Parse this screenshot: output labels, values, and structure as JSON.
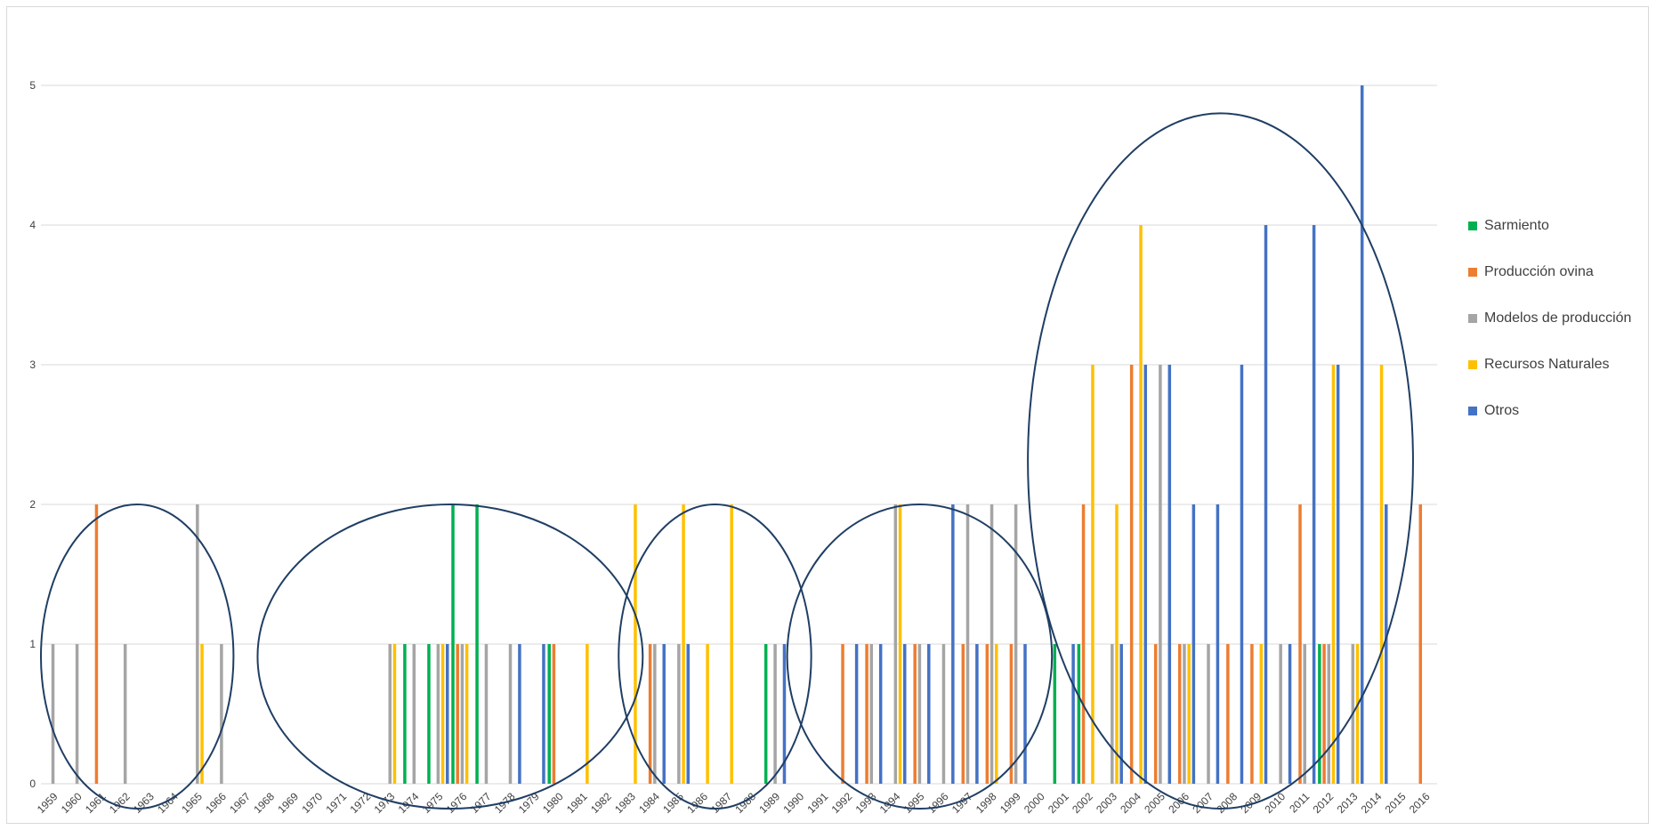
{
  "chart_data": {
    "type": "bar",
    "title": "",
    "xlabel": "",
    "ylabel": "",
    "ylim": [
      0,
      5
    ],
    "yticks": [
      "0",
      "1",
      "2",
      "3",
      "4",
      "5"
    ],
    "grid": true,
    "legend_position": "right",
    "categories": [
      "1959",
      "1960",
      "1961",
      "1962",
      "1963",
      "1964",
      "1965",
      "1966",
      "1967",
      "1968",
      "1969",
      "1970",
      "1971",
      "1972",
      "1973",
      "1974",
      "1975",
      "1976",
      "1977",
      "1978",
      "1979",
      "1980",
      "1981",
      "1982",
      "1983",
      "1984",
      "1985",
      "1986",
      "1987",
      "1988",
      "1989",
      "1990",
      "1991",
      "1992",
      "1993",
      "1994",
      "1995",
      "1996",
      "1997",
      "1998",
      "1999",
      "2000",
      "2001",
      "2002",
      "2003",
      "2004",
      "2005",
      "2006",
      "2007",
      "2008",
      "2009",
      "2010",
      "2011",
      "2012",
      "2013",
      "2014",
      "2015",
      "2016"
    ],
    "series": [
      {
        "name": "Sarmiento",
        "color": "#00b050",
        "values": [
          0,
          0,
          0,
          0,
          0,
          0,
          0,
          0,
          0,
          0,
          0,
          0,
          0,
          0,
          0,
          1,
          1,
          2,
          2,
          0,
          0,
          1,
          0,
          0,
          0,
          0,
          0,
          0,
          0,
          0,
          1,
          0,
          0,
          0,
          0,
          0,
          0,
          0,
          0,
          0,
          0,
          0,
          1,
          1,
          0,
          0,
          0,
          0,
          0,
          0,
          0,
          0,
          0,
          1,
          0,
          0,
          0,
          0
        ]
      },
      {
        "name": "Producción ovina",
        "color": "#ed7d31",
        "values": [
          0,
          0,
          2,
          0,
          0,
          0,
          0,
          0,
          0,
          0,
          0,
          0,
          0,
          0,
          0,
          0,
          0,
          1,
          0,
          0,
          0,
          1,
          0,
          0,
          0,
          1,
          0,
          0,
          0,
          0,
          0,
          0,
          0,
          1,
          1,
          0,
          1,
          0,
          1,
          1,
          1,
          0,
          0,
          2,
          0,
          3,
          1,
          1,
          0,
          1,
          1,
          0,
          2,
          1,
          0,
          0,
          0,
          2
        ]
      },
      {
        "name": "Modelos de producción",
        "color": "#a5a5a5",
        "values": [
          1,
          1,
          0,
          1,
          0,
          0,
          2,
          1,
          0,
          0,
          0,
          0,
          0,
          0,
          1,
          1,
          1,
          1,
          1,
          1,
          0,
          0,
          0,
          0,
          0,
          1,
          1,
          0,
          0,
          0,
          1,
          0,
          0,
          0,
          1,
          2,
          1,
          1,
          2,
          2,
          2,
          0,
          0,
          0,
          1,
          0,
          3,
          1,
          1,
          0,
          0,
          1,
          1,
          1,
          1,
          0,
          0,
          0
        ]
      },
      {
        "name": "Recursos Naturales",
        "color": "#ffc000",
        "values": [
          0,
          0,
          0,
          0,
          0,
          0,
          1,
          0,
          0,
          0,
          0,
          0,
          0,
          0,
          1,
          0,
          1,
          1,
          0,
          0,
          0,
          0,
          1,
          0,
          2,
          0,
          2,
          1,
          2,
          0,
          0,
          0,
          0,
          0,
          0,
          2,
          0,
          0,
          0,
          1,
          0,
          0,
          0,
          3,
          2,
          4,
          0,
          1,
          0,
          0,
          1,
          0,
          0,
          3,
          1,
          3,
          0,
          0
        ]
      },
      {
        "name": "Otros",
        "color": "#4472c4",
        "values": [
          0,
          0,
          0,
          0,
          0,
          0,
          0,
          0,
          0,
          0,
          0,
          0,
          0,
          0,
          0,
          0,
          1,
          0,
          0,
          1,
          1,
          0,
          0,
          0,
          0,
          1,
          1,
          0,
          0,
          0,
          1,
          0,
          0,
          1,
          1,
          1,
          1,
          2,
          1,
          0,
          1,
          0,
          1,
          0,
          1,
          3,
          3,
          2,
          2,
          3,
          4,
          1,
          4,
          3,
          5,
          2,
          0,
          0
        ]
      }
    ],
    "annotations": [
      {
        "shape": "ellipse",
        "x_from": "1959",
        "x_to": "1966",
        "y_range": [
          0,
          2
        ]
      },
      {
        "shape": "ellipse",
        "x_from": "1968",
        "x_to": "1983",
        "y_range": [
          0,
          2
        ]
      },
      {
        "shape": "ellipse",
        "x_from": "1983",
        "x_to": "1990",
        "y_range": [
          0,
          2
        ]
      },
      {
        "shape": "ellipse",
        "x_from": "1990",
        "x_to": "2000",
        "y_range": [
          0,
          2
        ]
      },
      {
        "shape": "ellipse",
        "x_from": "2000",
        "x_to": "2015",
        "y_range": [
          0,
          4.8
        ]
      }
    ]
  }
}
